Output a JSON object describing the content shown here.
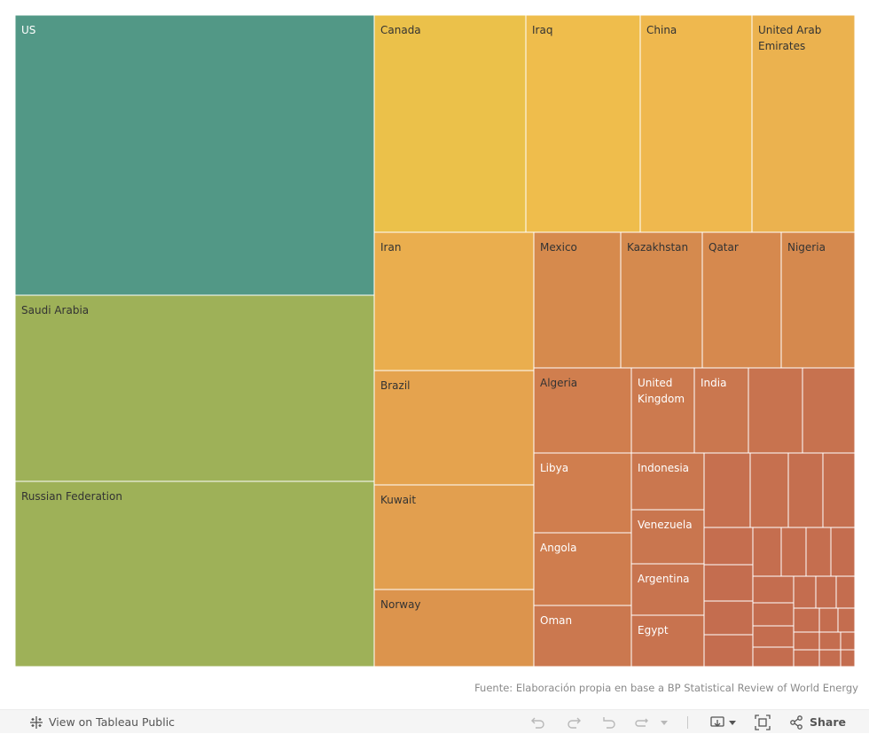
{
  "chart_data": {
    "type": "treemap",
    "countries": [
      {
        "name": "US",
        "color": "#529886",
        "text_color": "#ffffff"
      },
      {
        "name": "Saudi Arabia",
        "color": "#9eb158",
        "text_color": "#333333"
      },
      {
        "name": "Russian Federation",
        "color": "#9eb158",
        "text_color": "#333333"
      },
      {
        "name": "Canada",
        "color": "#ebc14a",
        "text_color": "#333333"
      },
      {
        "name": "Iraq",
        "color": "#efbd4c",
        "text_color": "#333333"
      },
      {
        "name": "China",
        "color": "#efb84e",
        "text_color": "#333333"
      },
      {
        "name": "United Arab Emirates",
        "color": "#ebb24f",
        "text_color": "#333333"
      },
      {
        "name": "Iran",
        "color": "#eaae4e",
        "text_color": "#333333"
      },
      {
        "name": "Brazil",
        "color": "#e5a34e",
        "text_color": "#333333"
      },
      {
        "name": "Kuwait",
        "color": "#e29f4f",
        "text_color": "#333333"
      },
      {
        "name": "Norway",
        "color": "#dc944d",
        "text_color": "#333333"
      },
      {
        "name": "Mexico",
        "color": "#d68a4d",
        "text_color": "#333333"
      },
      {
        "name": "Kazakhstan",
        "color": "#d58a4e",
        "text_color": "#333333"
      },
      {
        "name": "Qatar",
        "color": "#d6894e",
        "text_color": "#333333"
      },
      {
        "name": "Nigeria",
        "color": "#d5894e",
        "text_color": "#333333"
      },
      {
        "name": "Algeria",
        "color": "#d07e4e",
        "text_color": "#333333"
      },
      {
        "name": "United Kingdom",
        "color": "#cc7a4f",
        "text_color": "#ffffff"
      },
      {
        "name": "India",
        "color": "#ca774f",
        "text_color": "#ffffff"
      },
      {
        "name": "",
        "color": "#c8734f",
        "text_color": "#ffffff"
      },
      {
        "name": "",
        "color": "#c7724f",
        "text_color": "#ffffff"
      },
      {
        "name": "Libya",
        "color": "#d07e4e",
        "text_color": "#ffffff"
      },
      {
        "name": "Angola",
        "color": "#cf7d4e",
        "text_color": "#ffffff"
      },
      {
        "name": "Oman",
        "color": "#cb784f",
        "text_color": "#ffffff"
      },
      {
        "name": "Indonesia",
        "color": "#ca774f",
        "text_color": "#ffffff"
      },
      {
        "name": "Venezuela",
        "color": "#c9764f",
        "text_color": "#ffffff"
      },
      {
        "name": "Argentina",
        "color": "#c8744f",
        "text_color": "#ffffff"
      },
      {
        "name": "Egypt",
        "color": "#c8734f",
        "text_color": "#ffffff"
      },
      {
        "name": "",
        "color": "#c6704f",
        "text_color": "#ffffff"
      },
      {
        "name": "",
        "color": "#c6704f",
        "text_color": "#ffffff"
      },
      {
        "name": "",
        "color": "#c56f4f",
        "text_color": "#ffffff"
      },
      {
        "name": "",
        "color": "#c56f4f",
        "text_color": "#ffffff"
      },
      {
        "name": "",
        "color": "#c56e4f",
        "text_color": "#ffffff"
      },
      {
        "name": "",
        "color": "#c56e4f",
        "text_color": "#ffffff"
      },
      {
        "name": "",
        "color": "#c56e4f",
        "text_color": "#ffffff"
      },
      {
        "name": "",
        "color": "#c56e4f",
        "text_color": "#ffffff"
      },
      {
        "name": "",
        "color": "#c46d4f",
        "text_color": "#ffffff"
      },
      {
        "name": "",
        "color": "#c46d4f",
        "text_color": "#ffffff"
      },
      {
        "name": "",
        "color": "#c46d4f",
        "text_color": "#ffffff"
      },
      {
        "name": "",
        "color": "#c46d4f",
        "text_color": "#ffffff"
      },
      {
        "name": "",
        "color": "#c46d4f",
        "text_color": "#ffffff"
      },
      {
        "name": "",
        "color": "#c46d4f",
        "text_color": "#ffffff"
      },
      {
        "name": "",
        "color": "#c46d4f",
        "text_color": "#ffffff"
      },
      {
        "name": "",
        "color": "#c46d4f",
        "text_color": "#ffffff"
      },
      {
        "name": "",
        "color": "#c46d4f",
        "text_color": "#ffffff"
      },
      {
        "name": "",
        "color": "#c46d4f",
        "text_color": "#ffffff"
      },
      {
        "name": "",
        "color": "#c46d4f",
        "text_color": "#ffffff"
      },
      {
        "name": "",
        "color": "#c46d4f",
        "text_color": "#ffffff"
      },
      {
        "name": "",
        "color": "#c46d4f",
        "text_color": "#ffffff"
      },
      {
        "name": "",
        "color": "#c46d4f",
        "text_color": "#ffffff"
      },
      {
        "name": "",
        "color": "#c46d4f",
        "text_color": "#ffffff"
      },
      {
        "name": "",
        "color": "#c46d4f",
        "text_color": "#ffffff"
      },
      {
        "name": "",
        "color": "#c46d4f",
        "text_color": "#ffffff"
      },
      {
        "name": "",
        "color": "#c46d4f",
        "text_color": "#ffffff"
      },
      {
        "name": "",
        "color": "#c46d4f",
        "text_color": "#ffffff"
      },
      {
        "name": "",
        "color": "#c46d4f",
        "text_color": "#ffffff"
      },
      {
        "name": "",
        "color": "#c46d4f",
        "text_color": "#ffffff"
      },
      {
        "name": "",
        "color": "#c46d4f",
        "text_color": "#ffffff"
      },
      {
        "name": "",
        "color": "#c46d4f",
        "text_color": "#ffffff"
      }
    ]
  },
  "source_note": "Fuente: Elaboración propia en base a BP Statistical Review of World Energy",
  "toolbar": {
    "view_on_public_label": "View on Tableau Public",
    "share_label": "Share",
    "icons": [
      "tableau-logo-icon",
      "undo-icon",
      "redo-icon",
      "revert-icon",
      "refresh-icon",
      "pause-dropdown-icon",
      "download-icon",
      "fullscreen-icon",
      "share-icon"
    ]
  }
}
